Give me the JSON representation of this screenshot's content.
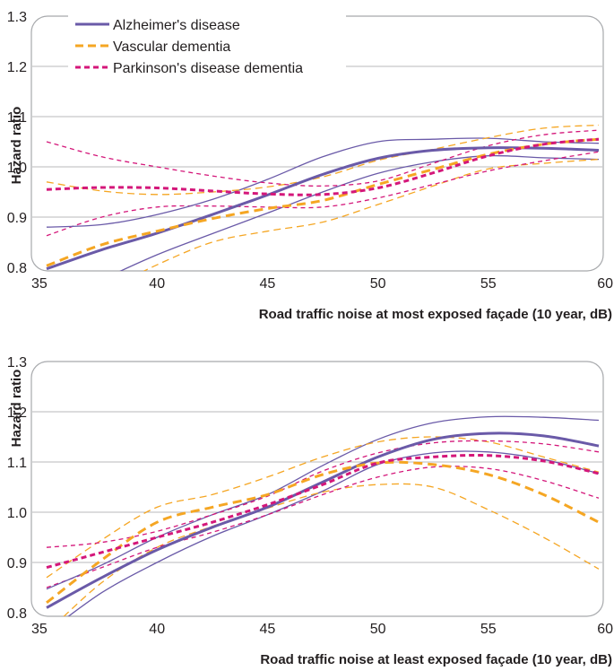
{
  "colors": {
    "alzheimers": "#6a5aa8",
    "vascular": "#f5a623",
    "parkinsons": "#d4177a",
    "grid": "#b8b9bb",
    "frame": "#a7a9ac",
    "text": "#231f20"
  },
  "chart_data": [
    {
      "type": "line",
      "title": "",
      "xlabel": "Road traffic noise at most exposed façade (10 year, dB)",
      "ylabel": "Hazard ratio",
      "xlim": [
        35,
        60
      ],
      "ylim": [
        0.8,
        1.3
      ],
      "xticks": [
        35,
        40,
        45,
        50,
        55,
        60
      ],
      "yticks": [
        0.8,
        0.9,
        1.0,
        1.1,
        1.2,
        1.3
      ],
      "ytick_labels": [
        "0.8",
        "0.9",
        "1.0",
        "1.1",
        "1.2",
        "1.3"
      ],
      "grid": true,
      "legend": {
        "placement": "top-left",
        "entries": [
          {
            "label": "Alzheimer's disease",
            "series": "alzheimers"
          },
          {
            "label": "Vascular dementia",
            "series": "vascular"
          },
          {
            "label": "Parkinson's disease dementia",
            "series": "parkinsons"
          }
        ]
      },
      "x": [
        35,
        37.5,
        40,
        42.5,
        45,
        47.5,
        50,
        52.5,
        55,
        57.5,
        60
      ],
      "series": [
        {
          "name": "Alzheimer's disease",
          "key": "alzheimers",
          "style": "solid",
          "estimate": [
            0.797,
            0.835,
            0.868,
            0.905,
            0.944,
            0.985,
            1.017,
            1.033,
            1.038,
            1.037,
            1.033
          ],
          "lower": [
            0.72,
            0.775,
            0.825,
            0.867,
            0.908,
            0.95,
            0.987,
            1.01,
            1.022,
            1.018,
            1.015
          ],
          "upper": [
            0.88,
            0.885,
            0.905,
            0.935,
            0.975,
            1.02,
            1.05,
            1.055,
            1.057,
            1.05,
            1.047
          ]
        },
        {
          "name": "Vascular dementia",
          "key": "vascular",
          "style": "dashed",
          "estimate": [
            0.803,
            0.845,
            0.872,
            0.897,
            0.917,
            0.933,
            0.965,
            0.995,
            1.025,
            1.045,
            1.055
          ],
          "lower": [
            0.7,
            0.75,
            0.805,
            0.85,
            0.872,
            0.89,
            0.925,
            0.962,
            0.996,
            1.007,
            1.015
          ],
          "upper": [
            0.97,
            0.952,
            0.945,
            0.95,
            0.96,
            0.98,
            1.013,
            1.035,
            1.058,
            1.077,
            1.083
          ]
        },
        {
          "name": "Parkinson's disease dementia",
          "key": "parkinsons",
          "style": "dashed",
          "estimate": [
            0.955,
            0.959,
            0.958,
            0.952,
            0.946,
            0.945,
            0.958,
            0.988,
            1.022,
            1.045,
            1.055
          ],
          "lower": [
            0.863,
            0.9,
            0.92,
            0.922,
            0.92,
            0.92,
            0.938,
            0.965,
            0.992,
            1.012,
            1.03
          ],
          "upper": [
            1.05,
            1.02,
            1.0,
            0.982,
            0.968,
            0.962,
            0.972,
            1.007,
            1.042,
            1.064,
            1.073
          ]
        }
      ]
    },
    {
      "type": "line",
      "title": "",
      "xlabel": "Road traffic noise at least exposed façade (10 year, dB)",
      "ylabel": "Hazard ratio",
      "xlim": [
        35,
        60
      ],
      "ylim": [
        0.8,
        1.3
      ],
      "xticks": [
        35,
        40,
        45,
        50,
        55,
        60
      ],
      "yticks": [
        0.8,
        0.9,
        1.0,
        1.1,
        1.2,
        1.3
      ],
      "ytick_labels": [
        "0.8",
        "0.9",
        "1.0",
        "1.1",
        "1.2",
        "1.3"
      ],
      "grid": true,
      "x": [
        35,
        37.5,
        40,
        42.5,
        45,
        47.5,
        50,
        52.5,
        55,
        57.5,
        60
      ],
      "series": [
        {
          "name": "Alzheimer's disease",
          "key": "alzheimers",
          "style": "solid",
          "estimate": [
            0.81,
            0.87,
            0.925,
            0.97,
            1.01,
            1.06,
            1.11,
            1.145,
            1.157,
            1.152,
            1.132
          ],
          "lower": [
            0.76,
            0.84,
            0.9,
            0.952,
            0.995,
            1.042,
            1.095,
            1.118,
            1.12,
            1.105,
            1.077
          ],
          "upper": [
            0.847,
            0.895,
            0.95,
            0.995,
            1.035,
            1.093,
            1.145,
            1.178,
            1.19,
            1.189,
            1.183
          ]
        },
        {
          "name": "Vascular dementia",
          "key": "vascular",
          "style": "dashed",
          "estimate": [
            0.82,
            0.905,
            0.98,
            1.01,
            1.035,
            1.075,
            1.098,
            1.095,
            1.075,
            1.035,
            0.98
          ],
          "lower": [
            0.76,
            0.86,
            0.93,
            0.972,
            1.008,
            1.04,
            1.055,
            1.05,
            1.005,
            0.95,
            0.887
          ],
          "upper": [
            0.87,
            0.945,
            1.01,
            1.035,
            1.07,
            1.11,
            1.14,
            1.15,
            1.14,
            1.11,
            1.08
          ]
        },
        {
          "name": "Parkinson's disease dementia",
          "key": "parkinsons",
          "style": "dashed",
          "estimate": [
            0.89,
            0.92,
            0.95,
            0.98,
            1.015,
            1.055,
            1.098,
            1.11,
            1.113,
            1.102,
            1.077
          ],
          "lower": [
            0.85,
            0.89,
            0.93,
            0.96,
            0.995,
            1.035,
            1.07,
            1.09,
            1.087,
            1.063,
            1.028
          ],
          "upper": [
            0.93,
            0.94,
            0.962,
            0.995,
            1.032,
            1.082,
            1.118,
            1.138,
            1.142,
            1.136,
            1.12
          ]
        }
      ]
    }
  ]
}
